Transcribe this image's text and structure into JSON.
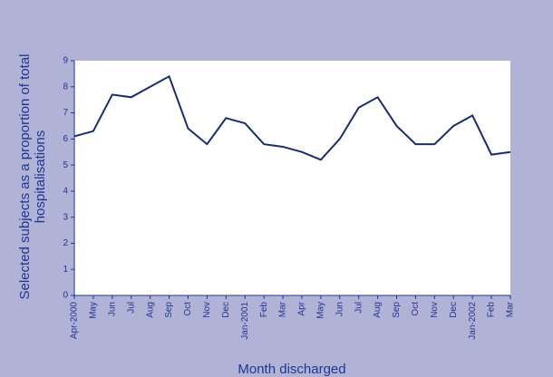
{
  "chart_data": {
    "type": "line",
    "xlabel": "Month discharged",
    "ylabel": "Selected subjects as a proportion of total hospitalisations",
    "categories": [
      "Apr-2000",
      "May",
      "Jun",
      "Jul",
      "Aug",
      "Sep",
      "Oct",
      "Nov",
      "Dec",
      "Jan-2001",
      "Feb",
      "Mar",
      "Apr",
      "May",
      "Jun",
      "Jul",
      "Aug",
      "Sep",
      "Oct",
      "Nov",
      "Dec",
      "Jan-2002",
      "Feb",
      "Mar"
    ],
    "values": [
      6.1,
      6.3,
      7.7,
      7.6,
      8.0,
      8.4,
      6.4,
      5.8,
      6.8,
      6.6,
      5.8,
      5.7,
      5.5,
      5.2,
      6.0,
      7.2,
      7.6,
      6.5,
      5.8,
      5.8,
      6.5,
      6.9,
      5.4,
      5.5
    ],
    "color": "#1a2d6e",
    "ylim": [
      0,
      9
    ],
    "yticks": [
      0,
      1,
      2,
      3,
      4,
      5,
      6,
      7,
      8,
      9
    ]
  }
}
